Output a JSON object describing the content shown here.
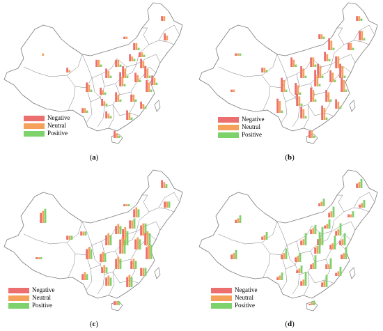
{
  "legend": {
    "items": [
      {
        "label": "Negative",
        "color": "#ec6f70"
      },
      {
        "label": "Neutral",
        "color": "#f5a15a"
      },
      {
        "label": "Positive",
        "color": "#7ed26b"
      }
    ]
  },
  "colors": {
    "negative": "#ec6f70",
    "neutral": "#f5a15a",
    "positive": "#7ed26b",
    "border": "#7a7a7a"
  },
  "panels": [
    {
      "label": "a",
      "chart_data": {
        "type": "bar",
        "series": [
          {
            "name": "Negative"
          },
          {
            "name": "Neutral"
          },
          {
            "name": "Positive"
          }
        ],
        "bars": [
          {
            "region": "Xinjiang",
            "values": [
              0,
              1,
              0
            ]
          },
          {
            "region": "Heilongjiang",
            "values": [
              2,
              2,
              0
            ]
          },
          {
            "region": "Jilin",
            "values": [
              3,
              2,
              0
            ]
          },
          {
            "region": "Inner Mongolia",
            "values": [
              1,
              1,
              0
            ]
          },
          {
            "region": "Beijing",
            "values": [
              3,
              3,
              1
            ]
          },
          {
            "region": "Tianjin",
            "values": [
              2,
              2,
              1
            ]
          },
          {
            "region": "Hebei",
            "values": [
              3,
              2,
              1
            ]
          },
          {
            "region": "Shanxi",
            "values": [
              3,
              3,
              1
            ]
          },
          {
            "region": "Shandong",
            "values": [
              4,
              3,
              1
            ]
          },
          {
            "region": "Henan",
            "values": [
              5,
              4,
              1
            ]
          },
          {
            "region": "Shaanxi",
            "values": [
              4,
              3,
              1
            ]
          },
          {
            "region": "Ningxia",
            "values": [
              3,
              3,
              1
            ]
          },
          {
            "region": "Qinghai",
            "values": [
              2,
              1,
              0
            ]
          },
          {
            "region": "Sichuan",
            "values": [
              4,
              3,
              1
            ]
          },
          {
            "region": "Chongqing",
            "values": [
              3,
              2,
              1
            ]
          },
          {
            "region": "Hubei",
            "values": [
              6,
              4,
              1
            ]
          },
          {
            "region": "Anhui",
            "values": [
              4,
              3,
              1
            ]
          },
          {
            "region": "Jiangsu",
            "values": [
              5,
              4,
              1
            ]
          },
          {
            "region": "Shanghai",
            "values": [
              4,
              3,
              1
            ]
          },
          {
            "region": "Zhejiang",
            "values": [
              5,
              4,
              1
            ]
          },
          {
            "region": "Hunan",
            "values": [
              4,
              3,
              1
            ]
          },
          {
            "region": "Jiangxi",
            "values": [
              3,
              3,
              1
            ]
          },
          {
            "region": "Fujian",
            "values": [
              3,
              2,
              1
            ]
          },
          {
            "region": "Guizhou",
            "values": [
              3,
              2,
              1
            ]
          },
          {
            "region": "Yunnan",
            "values": [
              2,
              2,
              1
            ]
          },
          {
            "region": "Guangxi",
            "values": [
              3,
              2,
              1
            ]
          },
          {
            "region": "Guangdong",
            "values": [
              4,
              3,
              1
            ]
          },
          {
            "region": "Hainan",
            "values": [
              3,
              2,
              1
            ]
          }
        ]
      }
    },
    {
      "label": "b",
      "chart_data": {
        "type": "bar",
        "series": [
          {
            "name": "Negative"
          },
          {
            "name": "Neutral"
          },
          {
            "name": "Positive"
          }
        ],
        "bars": [
          {
            "region": "Xinjiang",
            "values": [
              1,
              1,
              1
            ]
          },
          {
            "region": "Tibet",
            "values": [
              1,
              1,
              0
            ]
          },
          {
            "region": "Heilongjiang",
            "values": [
              2,
              2,
              1
            ]
          },
          {
            "region": "Jilin",
            "values": [
              4,
              4,
              1
            ]
          },
          {
            "region": "Liaoning",
            "values": [
              3,
              3,
              1
            ]
          },
          {
            "region": "Inner Mongolia",
            "values": [
              2,
              2,
              1
            ]
          },
          {
            "region": "Beijing",
            "values": [
              5,
              4,
              1
            ]
          },
          {
            "region": "Hebei",
            "values": [
              4,
              3,
              1
            ]
          },
          {
            "region": "Shanxi",
            "values": [
              4,
              4,
              1
            ]
          },
          {
            "region": "Shandong",
            "values": [
              5,
              5,
              1
            ]
          },
          {
            "region": "Henan",
            "values": [
              6,
              5,
              1
            ]
          },
          {
            "region": "Shaanxi",
            "values": [
              5,
              4,
              1
            ]
          },
          {
            "region": "Ningxia",
            "values": [
              4,
              3,
              1
            ]
          },
          {
            "region": "Qinghai",
            "values": [
              2,
              2,
              1
            ]
          },
          {
            "region": "Sichuan",
            "values": [
              6,
              5,
              1
            ]
          },
          {
            "region": "Chongqing",
            "values": [
              5,
              4,
              1
            ]
          },
          {
            "region": "Hubei",
            "values": [
              7,
              5,
              1
            ]
          },
          {
            "region": "Anhui",
            "values": [
              5,
              4,
              1
            ]
          },
          {
            "region": "Jiangsu",
            "values": [
              6,
              5,
              1
            ]
          },
          {
            "region": "Zhejiang",
            "values": [
              6,
              5,
              1
            ]
          },
          {
            "region": "Hunan",
            "values": [
              6,
              5,
              1
            ]
          },
          {
            "region": "Jiangxi",
            "values": [
              5,
              4,
              1
            ]
          },
          {
            "region": "Fujian",
            "values": [
              4,
              3,
              1
            ]
          },
          {
            "region": "Guizhou",
            "values": [
              5,
              4,
              1
            ]
          },
          {
            "region": "Yunnan",
            "values": [
              6,
              5,
              1
            ]
          },
          {
            "region": "Guangxi",
            "values": [
              5,
              4,
              1
            ]
          },
          {
            "region": "Guangdong",
            "values": [
              6,
              5,
              1
            ]
          },
          {
            "region": "Hainan",
            "values": [
              3,
              3,
              1
            ]
          }
        ]
      }
    },
    {
      "label": "c",
      "chart_data": {
        "type": "bar",
        "series": [
          {
            "name": "Negative"
          },
          {
            "name": "Neutral"
          },
          {
            "name": "Positive"
          }
        ],
        "bars": [
          {
            "region": "Xinjiang",
            "values": [
              5,
              6,
              7
            ]
          },
          {
            "region": "Tibet",
            "values": [
              1,
              1,
              1
            ]
          },
          {
            "region": "Heilongjiang",
            "values": [
              4,
              3,
              2
            ]
          },
          {
            "region": "Jilin",
            "values": [
              3,
              3,
              3
            ]
          },
          {
            "region": "Inner Mongolia",
            "values": [
              1,
              1,
              1
            ]
          },
          {
            "region": "Beijing",
            "values": [
              4,
              5,
              4
            ]
          },
          {
            "region": "Hebei",
            "values": [
              4,
              4,
              5
            ]
          },
          {
            "region": "Shanxi",
            "values": [
              4,
              5,
              4
            ]
          },
          {
            "region": "Shandong",
            "values": [
              5,
              6,
              6
            ]
          },
          {
            "region": "Henan",
            "values": [
              8,
              9,
              7
            ]
          },
          {
            "region": "Shaanxi",
            "values": [
              5,
              6,
              5
            ]
          },
          {
            "region": "Gansu",
            "values": [
              2,
              2,
              2
            ]
          },
          {
            "region": "Qinghai",
            "values": [
              2,
              2,
              2
            ]
          },
          {
            "region": "Sichuan",
            "values": [
              5,
              6,
              5
            ]
          },
          {
            "region": "Chongqing",
            "values": [
              4,
              5,
              4
            ]
          },
          {
            "region": "Hubei",
            "values": [
              7,
              8,
              7
            ]
          },
          {
            "region": "Anhui",
            "values": [
              5,
              6,
              5
            ]
          },
          {
            "region": "Jiangsu",
            "values": [
              6,
              7,
              6
            ]
          },
          {
            "region": "Zhejiang",
            "values": [
              6,
              7,
              7
            ]
          },
          {
            "region": "Hunan",
            "values": [
              5,
              6,
              5
            ]
          },
          {
            "region": "Jiangxi",
            "values": [
              4,
              5,
              4
            ]
          },
          {
            "region": "Fujian",
            "values": [
              4,
              4,
              4
            ]
          },
          {
            "region": "Guizhou",
            "values": [
              3,
              4,
              3
            ]
          },
          {
            "region": "Yunnan",
            "values": [
              3,
              4,
              3
            ]
          },
          {
            "region": "Guangxi",
            "values": [
              4,
              5,
              4
            ]
          },
          {
            "region": "Guangdong",
            "values": [
              5,
              6,
              5
            ]
          },
          {
            "region": "Hainan",
            "values": [
              2,
              2,
              2
            ]
          }
        ]
      }
    },
    {
      "label": "d",
      "chart_data": {
        "type": "bar",
        "series": [
          {
            "name": "Negative"
          },
          {
            "name": "Neutral"
          },
          {
            "name": "Positive"
          }
        ],
        "bars": [
          {
            "region": "Xinjiang",
            "values": [
              2,
              3,
              5
            ]
          },
          {
            "region": "Tibet",
            "values": [
              3,
              4,
              6
            ]
          },
          {
            "region": "Heilongjiang",
            "values": [
              3,
              4,
              6
            ]
          },
          {
            "region": "Jilin",
            "values": [
              2,
              3,
              5
            ]
          },
          {
            "region": "Liaoning",
            "values": [
              2,
              2,
              4
            ]
          },
          {
            "region": "Inner Mongolia",
            "values": [
              2,
              3,
              5
            ]
          },
          {
            "region": "Beijing",
            "values": [
              3,
              4,
              7
            ]
          },
          {
            "region": "Hebei",
            "values": [
              2,
              3,
              6
            ]
          },
          {
            "region": "Shanxi",
            "values": [
              3,
              4,
              6
            ]
          },
          {
            "region": "Shandong",
            "values": [
              3,
              4,
              8
            ]
          },
          {
            "region": "Henan",
            "values": [
              4,
              5,
              12
            ]
          },
          {
            "region": "Shaanxi",
            "values": [
              3,
              4,
              8
            ]
          },
          {
            "region": "Qinghai",
            "values": [
              2,
              3,
              5
            ]
          },
          {
            "region": "Sichuan",
            "values": [
              3,
              4,
              7
            ]
          },
          {
            "region": "Chongqing",
            "values": [
              3,
              4,
              6
            ]
          },
          {
            "region": "Hubei",
            "values": [
              4,
              5,
              14
            ]
          },
          {
            "region": "Anhui",
            "values": [
              3,
              4,
              9
            ]
          },
          {
            "region": "Jiangsu",
            "values": [
              3,
              4,
              8
            ]
          },
          {
            "region": "Zhejiang",
            "values": [
              3,
              4,
              8
            ]
          },
          {
            "region": "Hunan",
            "values": [
              3,
              4,
              9
            ]
          },
          {
            "region": "Jiangxi",
            "values": [
              3,
              3,
              7
            ]
          },
          {
            "region": "Fujian",
            "values": [
              2,
              3,
              6
            ]
          },
          {
            "region": "Guizhou",
            "values": [
              2,
              3,
              5
            ]
          },
          {
            "region": "Yunnan",
            "values": [
              2,
              3,
              5
            ]
          },
          {
            "region": "Guangxi",
            "values": [
              3,
              4,
              9
            ]
          },
          {
            "region": "Guangdong",
            "values": [
              3,
              4,
              8
            ]
          },
          {
            "region": "Hainan",
            "values": [
              1,
              2,
              3
            ]
          }
        ]
      }
    }
  ]
}
